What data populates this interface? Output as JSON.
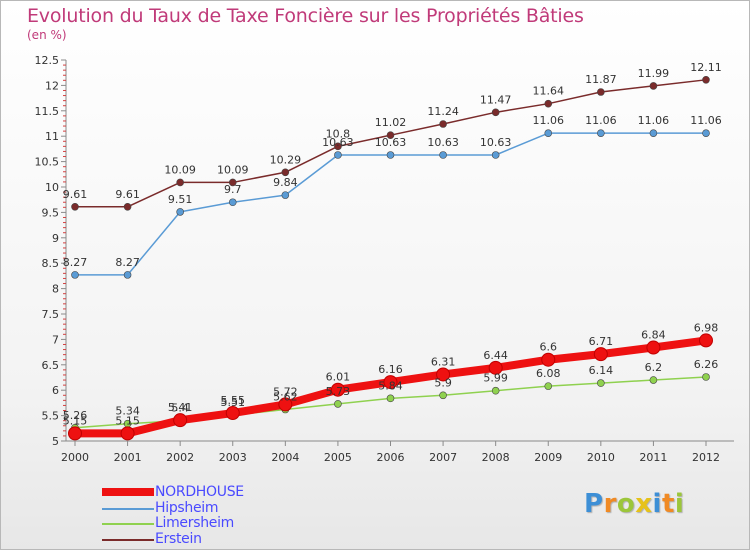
{
  "header": {
    "title": "Evolution du Taux de Taxe Foncière sur les Propriétés Bâties",
    "subtitle": "(en %)"
  },
  "brand": {
    "letters": [
      "P",
      "r",
      "o",
      "x",
      "i",
      "t",
      "i"
    ],
    "colors": [
      "#3d8fd6",
      "#f08a24",
      "#9cc63a",
      "#e6c21a",
      "#3d8fd6",
      "#f08a24",
      "#9cc63a"
    ]
  },
  "chart_data": {
    "type": "line",
    "title": "Evolution du Taux de Taxe Foncière sur les Propriétés Bâties",
    "subtitle": "(en %)",
    "xlabel": "",
    "ylabel": "",
    "x": [
      "2000",
      "2001",
      "2002",
      "2003",
      "2004",
      "2005",
      "2006",
      "2007",
      "2008",
      "2009",
      "2010",
      "2011",
      "2012"
    ],
    "ylim": [
      5,
      12.5
    ],
    "yticks": [
      "5",
      "5.5",
      "6",
      "6.5",
      "7",
      "7.5",
      "8",
      "8.5",
      "9",
      "9.5",
      "10",
      "10.5",
      "11",
      "11.5",
      "12",
      "12.5"
    ],
    "grid": false,
    "legend_position": "bottom-left",
    "series": [
      {
        "name": "NORDHOUSE",
        "color": "#ee1111",
        "values": [
          5.15,
          5.15,
          5.41,
          5.55,
          5.72,
          6.01,
          6.16,
          6.31,
          6.44,
          6.6,
          6.71,
          6.84,
          6.98
        ],
        "labels": [
          "5.15",
          "5.15",
          "5.41",
          "5.55",
          "5.72",
          "6.01",
          "6.16",
          "6.31",
          "6.44",
          "6.6",
          "6.71",
          "6.84",
          "6.98"
        ]
      },
      {
        "name": "Hipsheim",
        "color": "#5a9bd5",
        "values": [
          8.27,
          8.27,
          9.51,
          9.7,
          9.84,
          10.63,
          10.63,
          10.63,
          10.63,
          11.06,
          11.06,
          11.06,
          11.06
        ],
        "labels": [
          "8.27",
          "8.27",
          "9.51",
          "9.7",
          "9.84",
          "10.63",
          "10.63",
          "10.63",
          "10.63",
          "11.06",
          "11.06",
          "11.06",
          "11.06"
        ]
      },
      {
        "name": "Limersheim",
        "color": "#8fd14f",
        "values": [
          5.26,
          5.34,
          5.4,
          5.51,
          5.62,
          5.73,
          5.84,
          5.9,
          5.99,
          6.08,
          6.14,
          6.2,
          6.26
        ],
        "labels": [
          "5.26",
          "5.34",
          "5.4",
          "5.51",
          "5.62",
          "5.73",
          "5.84",
          "5.9",
          "5.99",
          "6.08",
          "6.14",
          "6.2",
          "6.26"
        ]
      },
      {
        "name": "Erstein",
        "color": "#7a2b2b",
        "values": [
          9.61,
          9.61,
          10.09,
          10.09,
          10.29,
          10.8,
          11.02,
          11.24,
          11.47,
          11.64,
          11.87,
          11.99,
          12.11
        ],
        "labels": [
          "9.61",
          "9.61",
          "10.09",
          "10.09",
          "10.29",
          "10.8",
          "11.02",
          "11.24",
          "11.47",
          "11.64",
          "11.87",
          "11.99",
          "12.11"
        ]
      }
    ]
  }
}
